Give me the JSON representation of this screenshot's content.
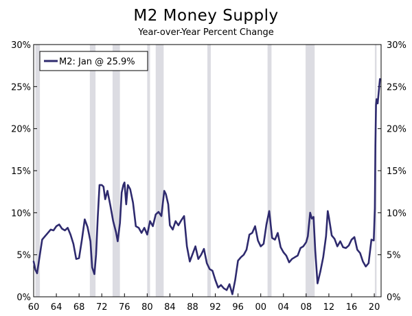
{
  "chart_data": {
    "type": "line",
    "title": "M2 Money Supply",
    "subtitle": "Year-over-Year Percent Change",
    "xlabel": "",
    "ylabel": "",
    "xlim": [
      1960,
      2021.2
    ],
    "ylim": [
      0,
      30
    ],
    "y_ticks": [
      0,
      5,
      10,
      15,
      20,
      25,
      30
    ],
    "y_tick_labels": [
      "0%",
      "5%",
      "10%",
      "15%",
      "20%",
      "25%",
      "30%"
    ],
    "x_ticks": [
      1960,
      1964,
      1968,
      1972,
      1976,
      1980,
      1984,
      1988,
      1992,
      1996,
      2000,
      2004,
      2008,
      2012,
      2016,
      2020
    ],
    "x_tick_labels": [
      "60",
      "64",
      "68",
      "72",
      "76",
      "80",
      "84",
      "88",
      "92",
      "96",
      "00",
      "04",
      "08",
      "12",
      "16",
      "20"
    ],
    "legend": {
      "label": "M2: Jan @ 25.9%",
      "placement": "top-left"
    },
    "colors": {
      "line": "#2e2a6e",
      "recession": "#dcdce2",
      "axis": "#000000"
    },
    "recessions": [
      [
        1960.3,
        1961.1
      ],
      [
        1969.9,
        1970.9
      ],
      [
        1973.9,
        1975.2
      ],
      [
        1980.0,
        1980.5
      ],
      [
        1981.5,
        1982.9
      ],
      [
        1990.6,
        1991.2
      ],
      [
        2001.2,
        2001.9
      ],
      [
        2007.9,
        2009.5
      ],
      [
        2020.1,
        2020.4
      ]
    ],
    "series": [
      {
        "name": "M2",
        "x": [
          1960.0,
          1960.3,
          1960.6,
          1961.0,
          1961.5,
          1962.0,
          1962.5,
          1963.0,
          1963.5,
          1964.0,
          1964.5,
          1965.0,
          1965.5,
          1966.0,
          1966.5,
          1967.0,
          1967.5,
          1968.0,
          1968.5,
          1969.0,
          1969.5,
          1970.0,
          1970.3,
          1970.7,
          1971.0,
          1971.3,
          1971.6,
          1972.0,
          1972.3,
          1972.6,
          1973.0,
          1973.5,
          1974.0,
          1974.5,
          1974.8,
          1975.2,
          1975.5,
          1975.8,
          1976.0,
          1976.3,
          1976.6,
          1977.0,
          1977.5,
          1978.0,
          1978.5,
          1979.0,
          1979.5,
          1980.0,
          1980.5,
          1981.0,
          1981.5,
          1982.0,
          1982.5,
          1983.0,
          1983.3,
          1983.7,
          1984.0,
          1984.5,
          1985.0,
          1985.5,
          1986.0,
          1986.5,
          1987.0,
          1987.5,
          1988.0,
          1988.5,
          1989.0,
          1989.5,
          1990.0,
          1990.5,
          1991.0,
          1991.5,
          1992.0,
          1992.5,
          1993.0,
          1993.5,
          1994.0,
          1994.5,
          1995.0,
          1995.5,
          1996.0,
          1996.5,
          1997.0,
          1997.5,
          1998.0,
          1998.5,
          1999.0,
          1999.5,
          2000.0,
          2000.5,
          2001.0,
          2001.5,
          2002.0,
          2002.5,
          2003.0,
          2003.5,
          2004.0,
          2004.5,
          2005.0,
          2005.5,
          2006.0,
          2006.5,
          2007.0,
          2007.5,
          2008.0,
          2008.3,
          2008.7,
          2009.0,
          2009.3,
          2009.6,
          2010.0,
          2010.5,
          2011.0,
          2011.5,
          2011.8,
          2012.0,
          2012.5,
          2013.0,
          2013.5,
          2014.0,
          2014.5,
          2015.0,
          2015.5,
          2016.0,
          2016.5,
          2017.0,
          2017.5,
          2018.0,
          2018.5,
          2019.0,
          2019.5,
          2019.9,
          2020.1,
          2020.2,
          2020.3,
          2020.4,
          2020.6,
          2020.8,
          2021.0
        ],
        "y": [
          4.2,
          3.2,
          2.8,
          4.6,
          6.8,
          7.2,
          7.6,
          8.0,
          7.9,
          8.4,
          8.6,
          8.1,
          7.9,
          8.2,
          7.4,
          6.3,
          4.5,
          4.6,
          6.8,
          9.2,
          8.3,
          6.6,
          3.5,
          2.7,
          5.0,
          9.5,
          13.3,
          13.3,
          13.1,
          11.6,
          12.6,
          10.9,
          9.0,
          7.7,
          6.6,
          8.8,
          12.4,
          13.3,
          13.6,
          11.0,
          13.3,
          12.8,
          11.2,
          8.4,
          8.2,
          7.6,
          8.2,
          7.4,
          9.0,
          8.4,
          9.8,
          10.1,
          9.6,
          12.6,
          12.2,
          11.0,
          8.5,
          8.0,
          9.0,
          8.5,
          9.1,
          9.6,
          6.0,
          4.2,
          5.1,
          6.0,
          4.5,
          5.0,
          5.7,
          4.0,
          3.3,
          3.1,
          2.0,
          1.1,
          1.4,
          1.0,
          0.8,
          1.5,
          0.3,
          2.0,
          4.3,
          4.7,
          5.0,
          5.6,
          7.4,
          7.6,
          8.4,
          6.7,
          6.0,
          6.3,
          8.6,
          10.2,
          7.0,
          6.8,
          7.6,
          5.9,
          5.3,
          4.9,
          4.1,
          4.5,
          4.7,
          4.9,
          5.8,
          6.0,
          6.5,
          7.2,
          10.0,
          9.3,
          9.5,
          5.5,
          1.6,
          3.0,
          4.7,
          7.2,
          10.2,
          9.5,
          7.3,
          6.9,
          6.0,
          6.6,
          5.9,
          5.8,
          6.1,
          6.8,
          7.1,
          5.6,
          5.2,
          4.2,
          3.6,
          4.0,
          6.8,
          6.7,
          10.5,
          18.0,
          22.8,
          23.5,
          23.0,
          24.5,
          25.9
        ]
      }
    ]
  }
}
